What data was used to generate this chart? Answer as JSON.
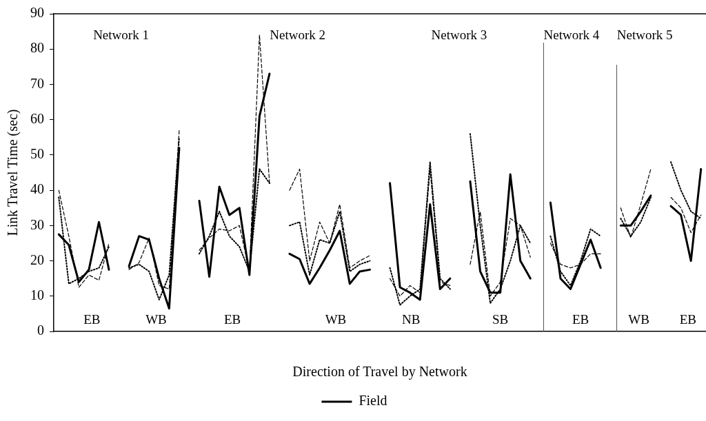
{
  "chart_data": {
    "type": "line",
    "ylabel": "Link Travel Time (sec)",
    "xlabel": "Direction of Travel by Network",
    "categories": [
      null,
      null,
      null,
      null,
      null,
      null,
      null,
      null,
      null,
      null,
      null,
      null,
      null,
      null,
      null,
      null,
      null,
      null,
      null,
      null,
      null,
      null,
      null,
      null,
      null,
      null,
      null,
      null,
      null,
      null,
      null,
      null,
      null,
      null,
      null,
      null,
      null,
      null,
      null,
      null,
      null,
      null,
      null,
      null,
      null,
      null,
      null,
      null,
      null,
      null,
      null,
      null,
      null,
      null,
      null,
      null,
      null,
      null,
      null,
      null,
      null,
      null,
      null,
      null,
      null
    ],
    "ylim": [
      0,
      90
    ],
    "yticks": [
      0,
      10,
      20,
      30,
      40,
      50,
      60,
      70,
      80,
      90
    ],
    "tick_labels": "y",
    "grid": false,
    "legend": "bottom",
    "marker": "none",
    "series": [
      {
        "color": "#000000",
        "line_style": "dotted",
        "values": [
          38,
          13.5,
          15,
          17,
          18,
          24,
          null,
          null,
          null,
          null,
          null,
          null,
          null,
          null,
          null,
          null,
          null,
          null,
          null,
          null,
          null,
          null,
          null,
          null,
          null,
          null,
          null,
          null,
          null,
          null,
          null,
          null,
          null,
          null,
          null,
          null,
          null,
          null,
          null,
          null,
          null,
          null,
          null,
          null,
          null,
          null,
          null,
          null,
          null,
          null,
          null,
          null,
          null,
          null,
          null,
          null,
          null,
          null,
          null,
          null,
          null,
          null,
          null,
          null,
          null
        ]
      },
      {
        "name": "Field",
        "color": "#000000",
        "line_style": "solid",
        "values": [
          27.5,
          24.5,
          14,
          17.5,
          31,
          17.5,
          null,
          null,
          null,
          null,
          null,
          null,
          null,
          null,
          null,
          null,
          null,
          null,
          null,
          null,
          null,
          null,
          null,
          null,
          null,
          null,
          null,
          null,
          null,
          null,
          null,
          null,
          null,
          null,
          null,
          null,
          null,
          null,
          null,
          null,
          null,
          null,
          null,
          null,
          null,
          null,
          null,
          null,
          null,
          null,
          null,
          null,
          null,
          null,
          null,
          null,
          null,
          null,
          null,
          null,
          null,
          null,
          null,
          null,
          null
        ]
      },
      {
        "color": "#000000",
        "line_style": "dashed",
        "values": [
          40,
          27,
          12.5,
          16,
          14.5,
          25,
          null,
          null,
          null,
          null,
          null,
          null,
          null,
          null,
          null,
          null,
          null,
          null,
          null,
          null,
          null,
          null,
          null,
          null,
          null,
          null,
          null,
          null,
          null,
          null,
          null,
          null,
          null,
          null,
          null,
          null,
          null,
          null,
          null,
          null,
          null,
          null,
          null,
          null,
          null,
          null,
          null,
          null,
          null,
          null,
          null,
          null,
          null,
          null,
          null,
          null,
          null,
          null,
          null,
          null,
          null,
          null,
          null,
          null,
          null
        ]
      },
      {
        "color": "#000000",
        "line_style": "dotted",
        "values": [
          null,
          null,
          null,
          null,
          null,
          null,
          null,
          18,
          19,
          17,
          9,
          16,
          55,
          null,
          null,
          null,
          null,
          null,
          null,
          null,
          null,
          null,
          null,
          null,
          null,
          null,
          null,
          null,
          null,
          null,
          null,
          null,
          null,
          null,
          null,
          null,
          null,
          null,
          null,
          null,
          null,
          null,
          null,
          null,
          null,
          null,
          null,
          null,
          null,
          null,
          null,
          null,
          null,
          null,
          null,
          null,
          null,
          null,
          null,
          null,
          null,
          null,
          null,
          null,
          null
        ]
      },
      {
        "color": "#000000",
        "line_style": "solid",
        "values": [
          null,
          null,
          null,
          null,
          null,
          null,
          null,
          18.5,
          27,
          26,
          15,
          6.5,
          52,
          null,
          null,
          null,
          null,
          null,
          null,
          null,
          null,
          null,
          null,
          null,
          null,
          null,
          null,
          null,
          null,
          null,
          null,
          null,
          null,
          null,
          null,
          null,
          null,
          null,
          null,
          null,
          null,
          null,
          null,
          null,
          null,
          null,
          null,
          null,
          null,
          null,
          null,
          null,
          null,
          null,
          null,
          null,
          null,
          null,
          null,
          null,
          null,
          null,
          null,
          null,
          null
        ]
      },
      {
        "color": "#000000",
        "line_style": "dashed",
        "values": [
          null,
          null,
          null,
          null,
          null,
          null,
          null,
          17.5,
          19.5,
          26.5,
          13,
          12,
          57,
          null,
          null,
          null,
          null,
          null,
          null,
          null,
          null,
          null,
          null,
          null,
          null,
          null,
          null,
          null,
          null,
          null,
          null,
          null,
          null,
          null,
          null,
          null,
          null,
          null,
          null,
          null,
          null,
          null,
          null,
          null,
          null,
          null,
          null,
          null,
          null,
          null,
          null,
          null,
          null,
          null,
          null,
          null,
          null,
          null,
          null,
          null,
          null,
          null,
          null,
          null,
          null
        ]
      },
      {
        "color": "#000000",
        "line_style": "dotted",
        "values": [
          null,
          null,
          null,
          null,
          null,
          null,
          null,
          null,
          null,
          null,
          null,
          null,
          null,
          null,
          22,
          27,
          34,
          27,
          24,
          17,
          46,
          42,
          null,
          null,
          null,
          null,
          null,
          null,
          null,
          null,
          null,
          null,
          null,
          null,
          null,
          null,
          null,
          null,
          null,
          null,
          null,
          null,
          null,
          null,
          null,
          null,
          null,
          null,
          null,
          null,
          null,
          null,
          null,
          null,
          null,
          null,
          null,
          null,
          null,
          null,
          null,
          null,
          null,
          null,
          null
        ]
      },
      {
        "color": "#000000",
        "line_style": "solid",
        "values": [
          null,
          null,
          null,
          null,
          null,
          null,
          null,
          null,
          null,
          null,
          null,
          null,
          null,
          null,
          37,
          15.5,
          41,
          33,
          35,
          16,
          61,
          73,
          null,
          null,
          null,
          null,
          null,
          null,
          null,
          null,
          null,
          null,
          null,
          null,
          null,
          null,
          null,
          null,
          null,
          null,
          null,
          null,
          null,
          null,
          null,
          null,
          null,
          null,
          null,
          null,
          null,
          null,
          null,
          null,
          null,
          null,
          null,
          null,
          null,
          null,
          null,
          null,
          null,
          null,
          null
        ]
      },
      {
        "color": "#000000",
        "line_style": "dashed",
        "values": [
          null,
          null,
          null,
          null,
          null,
          null,
          null,
          null,
          null,
          null,
          null,
          null,
          null,
          null,
          23,
          26.5,
          29,
          28.5,
          30,
          17,
          84,
          42,
          null,
          null,
          null,
          null,
          null,
          null,
          null,
          null,
          null,
          null,
          null,
          null,
          null,
          null,
          null,
          null,
          null,
          null,
          null,
          null,
          null,
          null,
          null,
          null,
          null,
          null,
          null,
          null,
          null,
          null,
          null,
          null,
          null,
          null,
          null,
          null,
          null,
          null,
          null,
          null,
          null,
          null,
          null
        ]
      },
      {
        "color": "#000000",
        "line_style": "dotted",
        "values": [
          null,
          null,
          null,
          null,
          null,
          null,
          null,
          null,
          null,
          null,
          null,
          null,
          null,
          null,
          null,
          null,
          null,
          null,
          null,
          null,
          null,
          null,
          null,
          30,
          31,
          16,
          26,
          25,
          34,
          17,
          19,
          20,
          null,
          null,
          null,
          null,
          null,
          null,
          null,
          null,
          null,
          null,
          null,
          null,
          null,
          null,
          null,
          null,
          null,
          null,
          null,
          null,
          null,
          null,
          null,
          null,
          null,
          null,
          null,
          null,
          null,
          null,
          null,
          null,
          null
        ]
      },
      {
        "color": "#000000",
        "line_style": "solid",
        "values": [
          null,
          null,
          null,
          null,
          null,
          null,
          null,
          null,
          null,
          null,
          null,
          null,
          null,
          null,
          null,
          null,
          null,
          null,
          null,
          null,
          null,
          null,
          null,
          22,
          20.5,
          13.5,
          18,
          23,
          28.5,
          13.5,
          17,
          17.5,
          null,
          null,
          null,
          null,
          null,
          null,
          null,
          null,
          null,
          null,
          null,
          null,
          null,
          null,
          null,
          null,
          null,
          null,
          null,
          null,
          null,
          null,
          null,
          null,
          null,
          null,
          null,
          null,
          null,
          null,
          null,
          null,
          null
        ]
      },
      {
        "color": "#000000",
        "line_style": "dashed",
        "values": [
          null,
          null,
          null,
          null,
          null,
          null,
          null,
          null,
          null,
          null,
          null,
          null,
          null,
          null,
          null,
          null,
          null,
          null,
          null,
          null,
          null,
          null,
          null,
          40,
          46,
          20,
          31,
          25,
          36,
          18,
          20,
          21.5,
          null,
          null,
          null,
          null,
          null,
          null,
          null,
          null,
          null,
          null,
          null,
          null,
          null,
          null,
          null,
          null,
          null,
          null,
          null,
          null,
          null,
          null,
          null,
          null,
          null,
          null,
          null,
          null,
          null,
          null,
          null,
          null,
          null
        ]
      },
      {
        "color": "#000000",
        "line_style": "dotted",
        "values": [
          null,
          null,
          null,
          null,
          null,
          null,
          null,
          null,
          null,
          null,
          null,
          null,
          null,
          null,
          null,
          null,
          null,
          null,
          null,
          null,
          null,
          null,
          null,
          null,
          null,
          null,
          null,
          null,
          null,
          null,
          null,
          null,
          null,
          18,
          7.5,
          10,
          12,
          48,
          15,
          12,
          null,
          null,
          null,
          null,
          null,
          null,
          null,
          null,
          null,
          null,
          null,
          null,
          null,
          null,
          null,
          null,
          null,
          null,
          null,
          null,
          null,
          null,
          null,
          null,
          null
        ]
      },
      {
        "color": "#000000",
        "line_style": "solid",
        "values": [
          null,
          null,
          null,
          null,
          null,
          null,
          null,
          null,
          null,
          null,
          null,
          null,
          null,
          null,
          null,
          null,
          null,
          null,
          null,
          null,
          null,
          null,
          null,
          null,
          null,
          null,
          null,
          null,
          null,
          null,
          null,
          null,
          null,
          42,
          12.5,
          11,
          9,
          36,
          12,
          15,
          null,
          null,
          null,
          null,
          null,
          null,
          null,
          null,
          null,
          null,
          null,
          null,
          null,
          null,
          null,
          null,
          null,
          null,
          null,
          null,
          null,
          null,
          null,
          null,
          null
        ]
      },
      {
        "color": "#000000",
        "line_style": "dashed",
        "values": [
          null,
          null,
          null,
          null,
          null,
          null,
          null,
          null,
          null,
          null,
          null,
          null,
          null,
          null,
          null,
          null,
          null,
          null,
          null,
          null,
          null,
          null,
          null,
          null,
          null,
          null,
          null,
          null,
          null,
          null,
          null,
          null,
          null,
          15,
          10,
          13,
          11,
          46,
          14,
          13,
          null,
          null,
          null,
          null,
          null,
          null,
          null,
          null,
          null,
          null,
          null,
          null,
          null,
          null,
          null,
          null,
          null,
          null,
          null,
          null,
          null,
          null,
          null,
          null,
          null
        ]
      },
      {
        "color": "#000000",
        "line_style": "dotted",
        "values": [
          null,
          null,
          null,
          null,
          null,
          null,
          null,
          null,
          null,
          null,
          null,
          null,
          null,
          null,
          null,
          null,
          null,
          null,
          null,
          null,
          null,
          null,
          null,
          null,
          null,
          null,
          null,
          null,
          null,
          null,
          null,
          null,
          null,
          null,
          null,
          null,
          null,
          null,
          null,
          null,
          null,
          56,
          30,
          8,
          12,
          20,
          30,
          25,
          null,
          null,
          null,
          null,
          null,
          null,
          null,
          null,
          null,
          null,
          null,
          null,
          null,
          null,
          null,
          null,
          null
        ]
      },
      {
        "color": "#000000",
        "line_style": "solid",
        "values": [
          null,
          null,
          null,
          null,
          null,
          null,
          null,
          null,
          null,
          null,
          null,
          null,
          null,
          null,
          null,
          null,
          null,
          null,
          null,
          null,
          null,
          null,
          null,
          null,
          null,
          null,
          null,
          null,
          null,
          null,
          null,
          null,
          null,
          null,
          null,
          null,
          null,
          null,
          null,
          null,
          null,
          42.5,
          17,
          11,
          11,
          44.5,
          20,
          15,
          null,
          null,
          null,
          null,
          null,
          null,
          null,
          null,
          null,
          null,
          null,
          null,
          null,
          null,
          null,
          null,
          null
        ]
      },
      {
        "color": "#000000",
        "line_style": "dashed",
        "values": [
          null,
          null,
          null,
          null,
          null,
          null,
          null,
          null,
          null,
          null,
          null,
          null,
          null,
          null,
          null,
          null,
          null,
          null,
          null,
          null,
          null,
          null,
          null,
          null,
          null,
          null,
          null,
          null,
          null,
          null,
          null,
          null,
          null,
          null,
          null,
          null,
          null,
          null,
          null,
          null,
          null,
          19,
          34,
          10,
          14,
          32,
          30,
          21,
          null,
          null,
          null,
          null,
          null,
          null,
          null,
          null,
          null,
          null,
          null,
          null,
          null,
          null,
          null,
          null,
          null
        ]
      },
      {
        "color": "#000000",
        "line_style": "dotted",
        "values": [
          null,
          null,
          null,
          null,
          null,
          null,
          null,
          null,
          null,
          null,
          null,
          null,
          null,
          null,
          null,
          null,
          null,
          null,
          null,
          null,
          null,
          null,
          null,
          null,
          null,
          null,
          null,
          null,
          null,
          null,
          null,
          null,
          null,
          null,
          null,
          null,
          null,
          null,
          null,
          null,
          null,
          null,
          null,
          null,
          null,
          null,
          null,
          null,
          null,
          27,
          17,
          13,
          20,
          29,
          27,
          null,
          null,
          null,
          null,
          null,
          null,
          null,
          null,
          null,
          null
        ]
      },
      {
        "color": "#000000",
        "line_style": "solid",
        "values": [
          null,
          null,
          null,
          null,
          null,
          null,
          null,
          null,
          null,
          null,
          null,
          null,
          null,
          null,
          null,
          null,
          null,
          null,
          null,
          null,
          null,
          null,
          null,
          null,
          null,
          null,
          null,
          null,
          null,
          null,
          null,
          null,
          null,
          null,
          null,
          null,
          null,
          null,
          null,
          null,
          null,
          null,
          null,
          null,
          null,
          null,
          null,
          null,
          null,
          36.5,
          15,
          12,
          19,
          26,
          18,
          null,
          null,
          null,
          null,
          null,
          null,
          null,
          null,
          null,
          null
        ]
      },
      {
        "color": "#000000",
        "line_style": "dashed",
        "values": [
          null,
          null,
          null,
          null,
          null,
          null,
          null,
          null,
          null,
          null,
          null,
          null,
          null,
          null,
          null,
          null,
          null,
          null,
          null,
          null,
          null,
          null,
          null,
          null,
          null,
          null,
          null,
          null,
          null,
          null,
          null,
          null,
          null,
          null,
          null,
          null,
          null,
          null,
          null,
          null,
          null,
          null,
          null,
          null,
          null,
          null,
          null,
          null,
          null,
          25,
          19,
          18,
          19,
          22,
          22,
          null,
          null,
          null,
          null,
          null,
          null,
          null,
          null,
          null,
          null
        ]
      },
      {
        "color": "#000000",
        "line_style": "dotted",
        "values": [
          null,
          null,
          null,
          null,
          null,
          null,
          null,
          null,
          null,
          null,
          null,
          null,
          null,
          null,
          null,
          null,
          null,
          null,
          null,
          null,
          null,
          null,
          null,
          null,
          null,
          null,
          null,
          null,
          null,
          null,
          null,
          null,
          null,
          null,
          null,
          null,
          null,
          null,
          null,
          null,
          null,
          null,
          null,
          null,
          null,
          null,
          null,
          null,
          null,
          null,
          null,
          null,
          null,
          null,
          null,
          null,
          32,
          27,
          31,
          38,
          null,
          null,
          null,
          null,
          null
        ]
      },
      {
        "color": "#000000",
        "line_style": "solid",
        "values": [
          null,
          null,
          null,
          null,
          null,
          null,
          null,
          null,
          null,
          null,
          null,
          null,
          null,
          null,
          null,
          null,
          null,
          null,
          null,
          null,
          null,
          null,
          null,
          null,
          null,
          null,
          null,
          null,
          null,
          null,
          null,
          null,
          null,
          null,
          null,
          null,
          null,
          null,
          null,
          null,
          null,
          null,
          null,
          null,
          null,
          null,
          null,
          null,
          null,
          null,
          null,
          null,
          null,
          null,
          null,
          null,
          30,
          30,
          34,
          38.5,
          null,
          null,
          null,
          null,
          null
        ]
      },
      {
        "color": "#000000",
        "line_style": "dashed",
        "values": [
          null,
          null,
          null,
          null,
          null,
          null,
          null,
          null,
          null,
          null,
          null,
          null,
          null,
          null,
          null,
          null,
          null,
          null,
          null,
          null,
          null,
          null,
          null,
          null,
          null,
          null,
          null,
          null,
          null,
          null,
          null,
          null,
          null,
          null,
          null,
          null,
          null,
          null,
          null,
          null,
          null,
          null,
          null,
          null,
          null,
          null,
          null,
          null,
          null,
          null,
          null,
          null,
          null,
          null,
          null,
          null,
          35,
          26.5,
          36,
          46,
          null,
          null,
          null,
          null,
          null
        ]
      },
      {
        "color": "#000000",
        "line_style": "dotted",
        "values": [
          null,
          null,
          null,
          null,
          null,
          null,
          null,
          null,
          null,
          null,
          null,
          null,
          null,
          null,
          null,
          null,
          null,
          null,
          null,
          null,
          null,
          null,
          null,
          null,
          null,
          null,
          null,
          null,
          null,
          null,
          null,
          null,
          null,
          null,
          null,
          null,
          null,
          null,
          null,
          null,
          null,
          null,
          null,
          null,
          null,
          null,
          null,
          null,
          null,
          null,
          null,
          null,
          null,
          null,
          null,
          null,
          null,
          null,
          null,
          null,
          null,
          48,
          40,
          34,
          32
        ]
      },
      {
        "color": "#000000",
        "line_style": "solid",
        "values": [
          null,
          null,
          null,
          null,
          null,
          null,
          null,
          null,
          null,
          null,
          null,
          null,
          null,
          null,
          null,
          null,
          null,
          null,
          null,
          null,
          null,
          null,
          null,
          null,
          null,
          null,
          null,
          null,
          null,
          null,
          null,
          null,
          null,
          null,
          null,
          null,
          null,
          null,
          null,
          null,
          null,
          null,
          null,
          null,
          null,
          null,
          null,
          null,
          null,
          null,
          null,
          null,
          null,
          null,
          null,
          null,
          null,
          null,
          null,
          null,
          null,
          35.5,
          33,
          20,
          46
        ]
      },
      {
        "color": "#000000",
        "line_style": "dashed",
        "values": [
          null,
          null,
          null,
          null,
          null,
          null,
          null,
          null,
          null,
          null,
          null,
          null,
          null,
          null,
          null,
          null,
          null,
          null,
          null,
          null,
          null,
          null,
          null,
          null,
          null,
          null,
          null,
          null,
          null,
          null,
          null,
          null,
          null,
          null,
          null,
          null,
          null,
          null,
          null,
          null,
          null,
          null,
          null,
          null,
          null,
          null,
          null,
          null,
          null,
          null,
          null,
          null,
          null,
          null,
          null,
          null,
          null,
          null,
          null,
          null,
          null,
          38,
          35,
          28,
          33
        ]
      }
    ],
    "annotations": [
      "Network 1",
      "Network 2",
      "Network 3",
      "Network 4",
      "Network 5",
      "EB",
      "WB",
      "EB",
      "WB",
      "NB",
      "SB",
      "EB",
      "WB",
      "EB"
    ]
  }
}
